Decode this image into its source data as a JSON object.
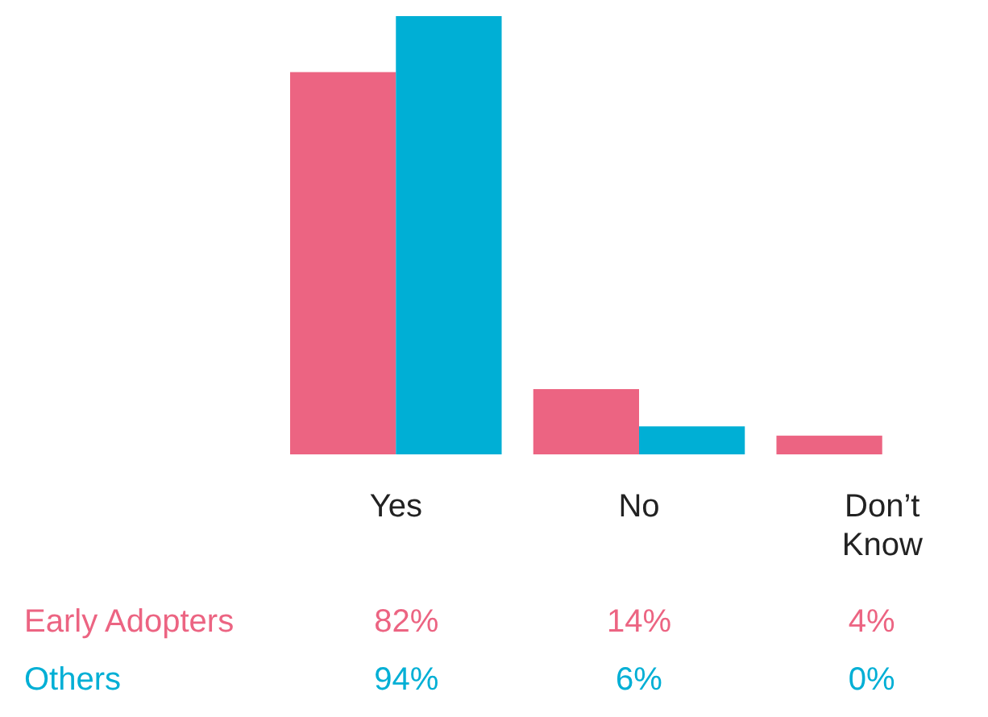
{
  "chart_data": {
    "type": "bar",
    "categories": [
      "Yes",
      "No",
      "Don’t Know"
    ],
    "series": [
      {
        "name": "Early Adopters",
        "color": "#ec6482",
        "values": [
          82,
          14,
          4
        ],
        "value_labels": [
          "82%",
          "14%",
          "4%"
        ]
      },
      {
        "name": "Others",
        "color": "#00afd5",
        "values": [
          94,
          6,
          0
        ],
        "value_labels": [
          "94%",
          "6%",
          "0%"
        ]
      }
    ]
  }
}
